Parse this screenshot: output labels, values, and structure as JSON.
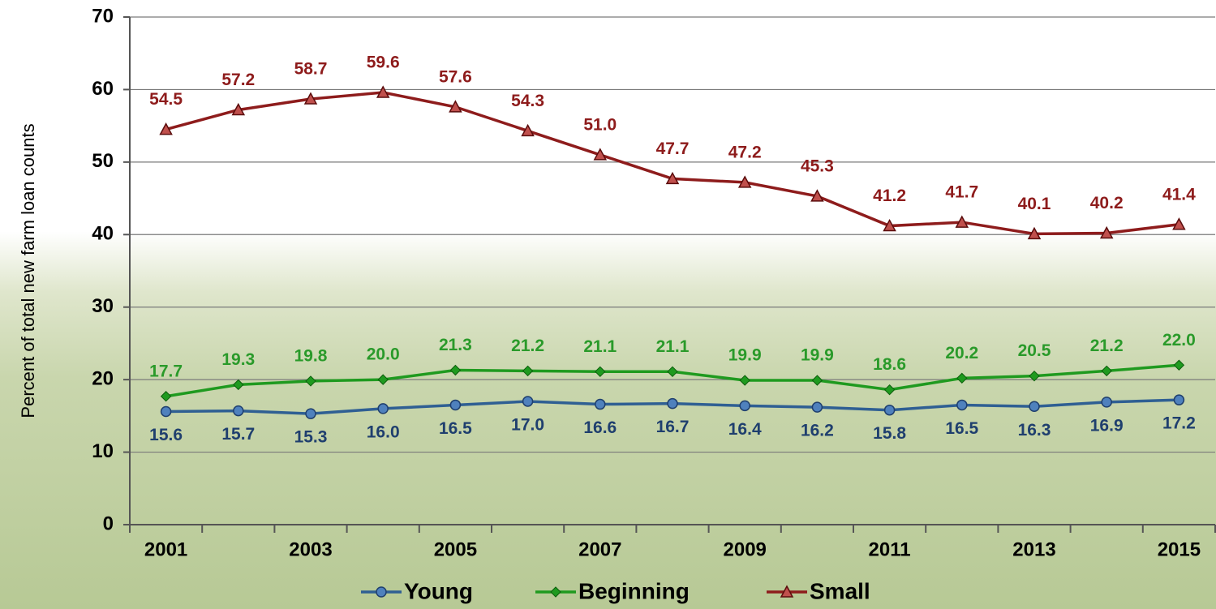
{
  "chart_data": {
    "type": "line",
    "y_label": "Percent of total new farm loan counts",
    "categories": [
      "2001",
      null,
      "2003",
      null,
      "2005",
      null,
      "2007",
      null,
      "2009",
      null,
      "2011",
      null,
      "2013",
      null,
      "2015"
    ],
    "series": [
      {
        "name": "Young",
        "color": "#2f5f93",
        "marker": "circle",
        "values": [
          15.6,
          15.7,
          15.3,
          16.0,
          16.5,
          17.0,
          16.6,
          16.7,
          16.4,
          16.2,
          15.8,
          16.5,
          16.3,
          16.9,
          17.2
        ],
        "value_labels": [
          "15.6",
          "15.7",
          "15.3",
          "16.0",
          "16.5",
          "17.0",
          "16.6",
          "16.7",
          "16.4",
          "16.2",
          "15.8",
          "16.5",
          "16.3",
          "16.9",
          "17.2"
        ]
      },
      {
        "name": "Beginning",
        "color": "#1f9a1f",
        "marker": "diamond",
        "values": [
          17.7,
          19.3,
          19.8,
          20.0,
          21.3,
          21.2,
          21.1,
          21.1,
          19.9,
          19.9,
          18.6,
          20.2,
          20.5,
          21.2,
          22.0
        ],
        "value_labels": [
          "17.7",
          "19.3",
          "19.8",
          "20.0",
          "21.3",
          "21.2",
          "21.1",
          "21.1",
          "19.9",
          "19.9",
          "18.6",
          "20.2",
          "20.5",
          "21.2",
          "22.0"
        ]
      },
      {
        "name": "Small",
        "color": "#8e1c1c",
        "marker": "triangle",
        "values": [
          54.5,
          57.2,
          58.7,
          59.6,
          57.6,
          54.3,
          51.0,
          47.7,
          47.2,
          45.3,
          41.2,
          41.7,
          40.1,
          40.2,
          41.4
        ],
        "value_labels": [
          "54.5",
          "57.2",
          "58.7",
          "59.6",
          "57.6",
          "54.3",
          "51.0",
          "47.7",
          "47.2",
          "45.3",
          "41.2",
          "41.7",
          "40.1",
          "40.2",
          "41.4"
        ]
      }
    ],
    "ylim": [
      0,
      70
    ],
    "yticks": [
      0,
      10,
      20,
      30,
      40,
      50,
      60,
      70
    ],
    "grid": true,
    "legend": "bottom"
  }
}
